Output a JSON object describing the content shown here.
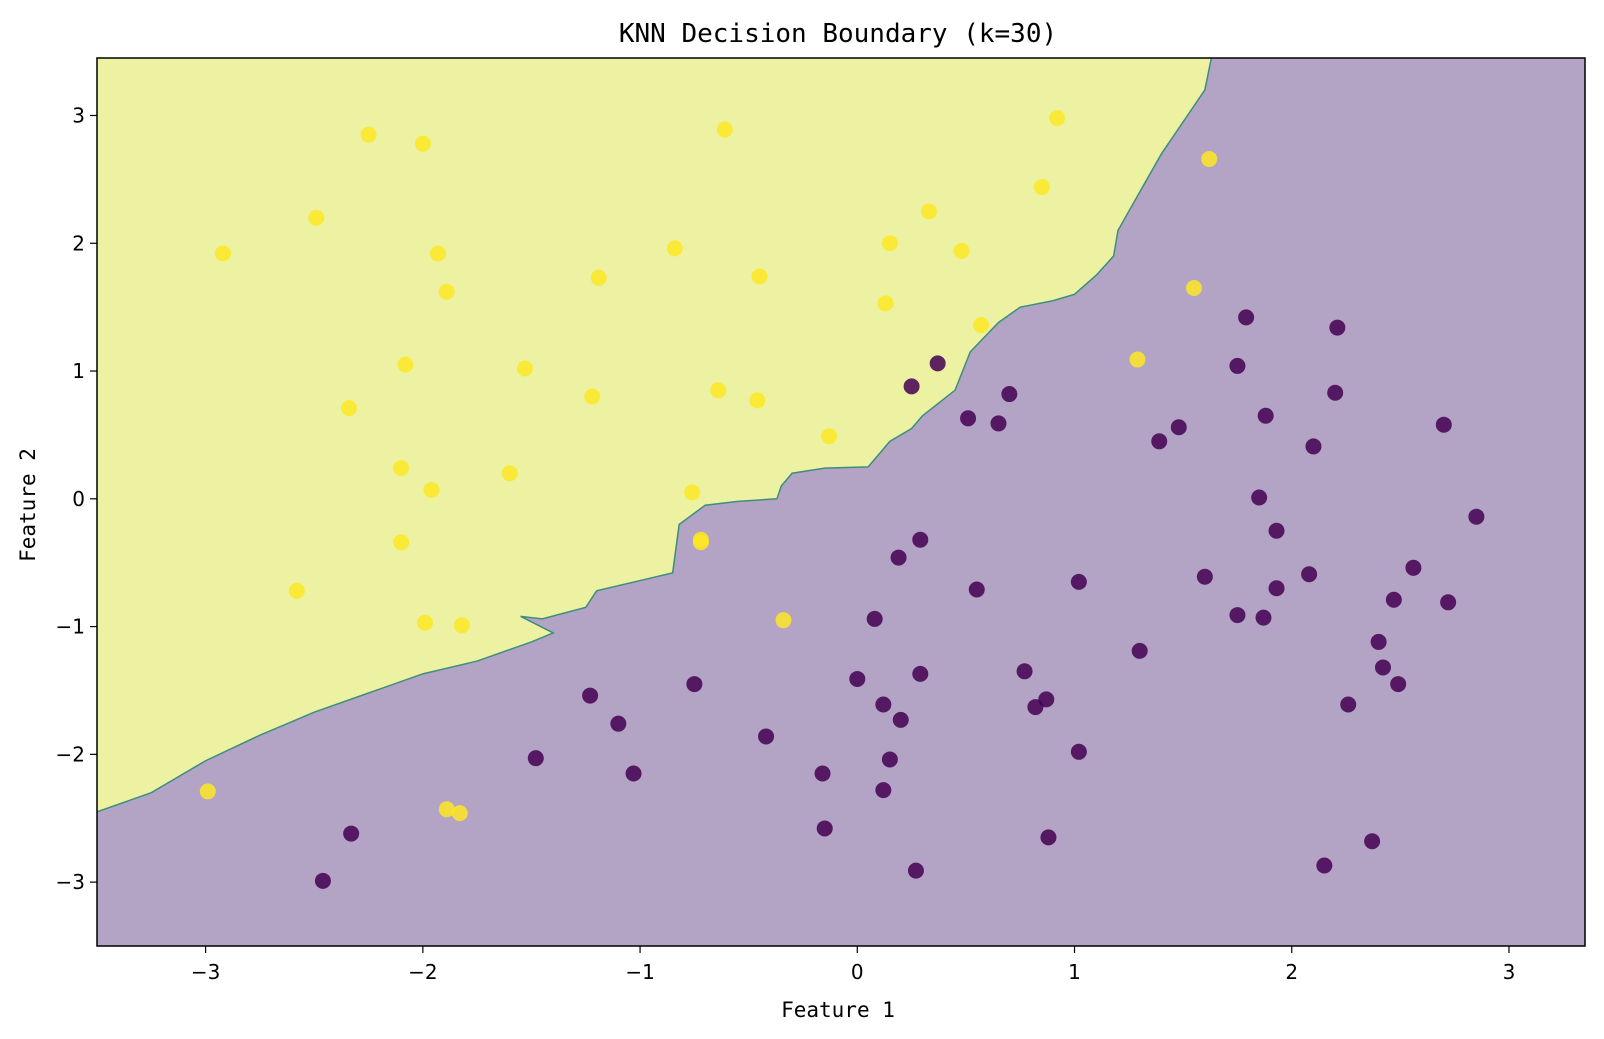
{
  "chart_data": {
    "type": "scatter",
    "title": "KNN Decision Boundary (k=30)",
    "xlabel": "Feature 1",
    "ylabel": "Feature 2",
    "xlim": [
      -3.5,
      3.35
    ],
    "ylim": [
      -3.5,
      3.45
    ],
    "xticks": [
      -3,
      -2,
      -1,
      0,
      1,
      2,
      3
    ],
    "yticks": [
      -3,
      -2,
      -1,
      0,
      1,
      2,
      3
    ],
    "xtick_labels": [
      "−3",
      "−2",
      "−1",
      "0",
      "1",
      "2",
      "3"
    ],
    "ytick_labels": [
      "−3",
      "−2",
      "−1",
      "0",
      "1",
      "2",
      "3"
    ],
    "grid": false,
    "colors": {
      "class_0_point": "#440154",
      "class_1_point": "#fde725",
      "class_0_region": "#b3a3c4",
      "class_1_region": "#ecf2a2",
      "boundary_line": "#3e8e7e"
    },
    "decision_boundary": [
      [
        -3.5,
        -2.45
      ],
      [
        -3.25,
        -2.3
      ],
      [
        -3.0,
        -2.05
      ],
      [
        -2.75,
        -1.85
      ],
      [
        -2.5,
        -1.67
      ],
      [
        -2.25,
        -1.52
      ],
      [
        -2.0,
        -1.37
      ],
      [
        -1.75,
        -1.27
      ],
      [
        -1.5,
        -1.12
      ],
      [
        -1.4,
        -1.05
      ],
      [
        -1.55,
        -0.92
      ],
      [
        -1.45,
        -0.94
      ],
      [
        -1.25,
        -0.85
      ],
      [
        -1.2,
        -0.72
      ],
      [
        -1.0,
        -0.64
      ],
      [
        -0.85,
        -0.58
      ],
      [
        -0.82,
        -0.2
      ],
      [
        -0.7,
        -0.05
      ],
      [
        -0.55,
        -0.02
      ],
      [
        -0.37,
        0.0
      ],
      [
        -0.35,
        0.1
      ],
      [
        -0.3,
        0.2
      ],
      [
        -0.15,
        0.24
      ],
      [
        0.05,
        0.25
      ],
      [
        0.15,
        0.45
      ],
      [
        0.25,
        0.55
      ],
      [
        0.3,
        0.65
      ],
      [
        0.45,
        0.85
      ],
      [
        0.52,
        1.15
      ],
      [
        0.65,
        1.38
      ],
      [
        0.75,
        1.5
      ],
      [
        0.9,
        1.55
      ],
      [
        1.0,
        1.6
      ],
      [
        1.1,
        1.75
      ],
      [
        1.18,
        1.9
      ],
      [
        1.2,
        2.1
      ],
      [
        1.3,
        2.4
      ],
      [
        1.4,
        2.7
      ],
      [
        1.52,
        3.0
      ],
      [
        1.6,
        3.2
      ],
      [
        1.63,
        3.45
      ]
    ],
    "series": [
      {
        "class": 1,
        "points": [
          [
            -2.92,
            1.92
          ],
          [
            -2.25,
            2.85
          ],
          [
            -2.49,
            2.2
          ],
          [
            -2.0,
            2.78
          ],
          [
            -1.93,
            1.92
          ],
          [
            -1.89,
            1.62
          ],
          [
            -2.08,
            1.05
          ],
          [
            -2.34,
            0.71
          ],
          [
            -2.1,
            0.24
          ],
          [
            -1.96,
            0.07
          ],
          [
            -2.1,
            -0.34
          ],
          [
            -2.58,
            -0.72
          ],
          [
            -1.99,
            -0.97
          ],
          [
            -1.82,
            -0.99
          ],
          [
            -1.6,
            0.2
          ],
          [
            -1.53,
            1.02
          ],
          [
            -1.19,
            1.73
          ],
          [
            -1.22,
            0.8
          ],
          [
            -0.84,
            1.96
          ],
          [
            -0.61,
            2.89
          ],
          [
            -0.45,
            1.74
          ],
          [
            -0.64,
            0.85
          ],
          [
            -0.46,
            0.77
          ],
          [
            -0.76,
            0.05
          ],
          [
            -0.72,
            -0.32
          ],
          [
            -0.72,
            -0.34
          ],
          [
            -0.34,
            -0.95
          ],
          [
            -0.13,
            0.49
          ],
          [
            0.15,
            2.0
          ],
          [
            0.13,
            1.53
          ],
          [
            0.33,
            2.25
          ],
          [
            0.48,
            1.94
          ],
          [
            0.85,
            2.44
          ],
          [
            0.92,
            2.98
          ],
          [
            0.57,
            1.36
          ],
          [
            1.29,
            1.09
          ],
          [
            1.55,
            1.65
          ],
          [
            1.62,
            2.66
          ],
          [
            -2.99,
            -2.29
          ],
          [
            -1.89,
            -2.43
          ],
          [
            -1.83,
            -2.46
          ]
        ]
      },
      {
        "class": 0,
        "points": [
          [
            0.37,
            1.06
          ],
          [
            0.25,
            0.88
          ],
          [
            0.7,
            0.82
          ],
          [
            0.51,
            0.63
          ],
          [
            0.65,
            0.59
          ],
          [
            0.19,
            -0.46
          ],
          [
            0.29,
            -0.32
          ],
          [
            0.55,
            -0.71
          ],
          [
            1.02,
            -0.65
          ],
          [
            0.08,
            -0.94
          ],
          [
            0.0,
            -1.41
          ],
          [
            0.12,
            -1.61
          ],
          [
            0.29,
            -1.37
          ],
          [
            0.2,
            -1.73
          ],
          [
            0.15,
            -2.04
          ],
          [
            0.12,
            -2.28
          ],
          [
            -0.15,
            -2.58
          ],
          [
            -0.16,
            -2.15
          ],
          [
            -0.42,
            -1.86
          ],
          [
            -0.75,
            -1.45
          ],
          [
            -1.23,
            -1.54
          ],
          [
            -1.1,
            -1.76
          ],
          [
            -1.03,
            -2.15
          ],
          [
            -1.48,
            -2.03
          ],
          [
            -2.33,
            -2.62
          ],
          [
            -2.46,
            -2.99
          ],
          [
            0.77,
            -1.35
          ],
          [
            0.82,
            -1.63
          ],
          [
            0.87,
            -1.57
          ],
          [
            1.02,
            -1.98
          ],
          [
            0.88,
            -2.65
          ],
          [
            0.27,
            -2.91
          ],
          [
            1.3,
            -1.19
          ],
          [
            1.39,
            0.45
          ],
          [
            1.48,
            0.56
          ],
          [
            1.79,
            1.42
          ],
          [
            1.75,
            1.04
          ],
          [
            2.21,
            1.34
          ],
          [
            2.2,
            0.83
          ],
          [
            1.88,
            0.65
          ],
          [
            2.1,
            0.41
          ],
          [
            2.7,
            0.58
          ],
          [
            1.85,
            0.01
          ],
          [
            1.93,
            -0.25
          ],
          [
            2.85,
            -0.14
          ],
          [
            2.56,
            -0.54
          ],
          [
            2.08,
            -0.59
          ],
          [
            1.6,
            -0.61
          ],
          [
            1.93,
            -0.7
          ],
          [
            1.75,
            -0.91
          ],
          [
            1.87,
            -0.93
          ],
          [
            2.47,
            -0.79
          ],
          [
            2.72,
            -0.81
          ],
          [
            2.4,
            -1.12
          ],
          [
            2.42,
            -1.32
          ],
          [
            2.49,
            -1.45
          ],
          [
            2.26,
            -1.61
          ],
          [
            2.37,
            -2.68
          ],
          [
            2.15,
            -2.87
          ]
        ]
      }
    ]
  }
}
